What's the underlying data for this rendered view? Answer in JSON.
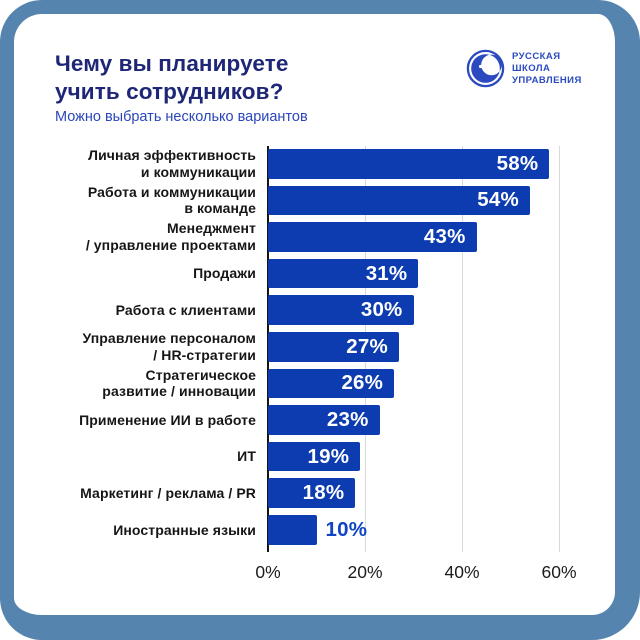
{
  "frame": {
    "border_color": "#5584ae",
    "card_background": "#ffffff"
  },
  "header": {
    "title": "Чему вы планируете\nучить сотрудников?",
    "subtitle": "Можно выбрать несколько вариантов",
    "title_color": "#1e2677",
    "subtitle_color": "#2a46bb"
  },
  "logo": {
    "text": "РУССКАЯ\nШКОЛА\nУПРАВЛЕНИЯ",
    "color": "#2b4ac0"
  },
  "chart_data": {
    "type": "bar",
    "orientation": "horizontal",
    "title": "Чему вы планируете учить сотрудников?",
    "subtitle": "Можно выбрать несколько вариантов",
    "categories": [
      "Личная эффективность\nи коммуникации",
      "Работа и коммуникации\nв команде",
      "Менеджмент\n/ управление проектами",
      "Продажи",
      "Работа с клиентами",
      "Управление персоналом\n/ HR-стратегии",
      "Стратегическое\nразвитие / инновации",
      "Применение ИИ в работе",
      "ИТ",
      "Маркетинг / реклама / PR",
      "Иностранные языки"
    ],
    "values": [
      58,
      54,
      43,
      31,
      30,
      27,
      26,
      23,
      19,
      18,
      10
    ],
    "value_labels": [
      "58%",
      "54%",
      "43%",
      "31%",
      "30%",
      "27%",
      "26%",
      "23%",
      "19%",
      "18%",
      "10%"
    ],
    "x_tick_labels": [
      "0%",
      "20%",
      "40%",
      "60%"
    ],
    "x_tick_values": [
      0,
      20,
      40,
      60
    ],
    "xlim": [
      0,
      60
    ],
    "grid": true,
    "legend": false,
    "bar_color": "#0d3cb0",
    "value_label_color_inside": "#ffffff",
    "value_label_color_outside": "#1245c4",
    "category_label_color": "#161616",
    "axis_label_color": "#1c1c1c",
    "gridline_color": "#d9d9d9",
    "axis_line_color": "#141414"
  }
}
